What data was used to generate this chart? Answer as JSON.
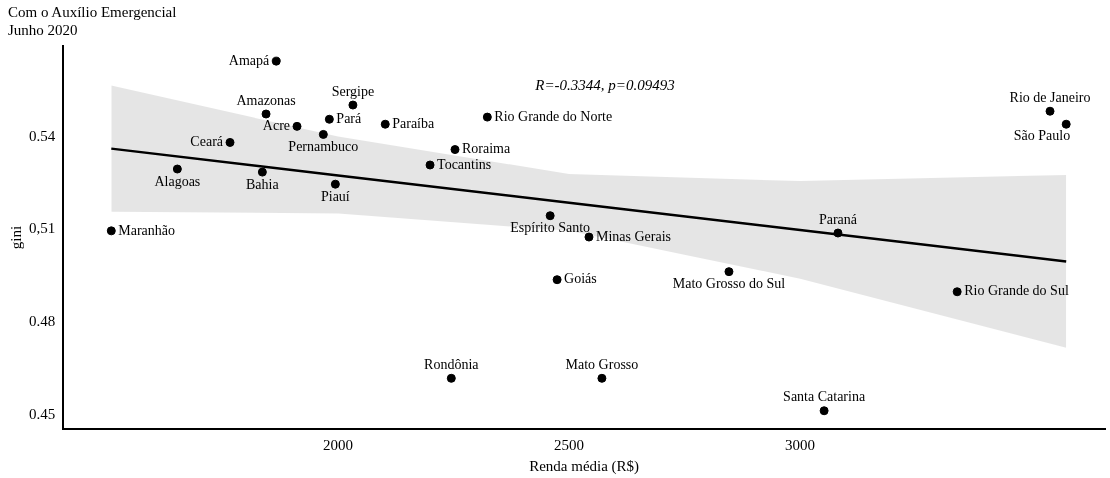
{
  "chart_data": {
    "type": "scatter",
    "title": "Com o Auxílio Emergencial",
    "subtitle": "Junho 2020",
    "xlabel": "Renda média (R$)",
    "ylabel": "gini",
    "annotations": [
      "R=-0.3344, p=0.09493"
    ],
    "xlim": [
      1405,
      3660
    ],
    "xticks": [
      2000,
      2500,
      3000
    ],
    "ylim": [
      0.4454,
      0.5693
    ],
    "yticks": [
      0.45,
      0.48,
      {
        "value": 0.51,
        "label": "0,51"
      },
      0.54
    ],
    "grid": false,
    "legend": false,
    "series": [
      {
        "marker": "circle",
        "color": "#000000",
        "x": [
          1866,
          1844,
          2032,
          1981,
          1911,
          2102,
          2323,
          1968,
          1766,
          2253,
          2199,
          1652,
          1836,
          1994,
          2459,
          1509,
          2543,
          3082,
          2846,
          2474,
          3340,
          3541,
          3576,
          2245,
          2571,
          3052
        ],
        "values": [
          0.5644,
          0.5473,
          0.5502,
          0.5456,
          0.5433,
          0.544,
          0.5463,
          0.5407,
          0.5381,
          0.5358,
          0.5308,
          0.5295,
          0.5285,
          0.5246,
          0.5144,
          0.5095,
          0.5075,
          0.5088,
          0.4963,
          0.4937,
          0.4898,
          0.5482,
          0.544,
          0.4618,
          0.4618,
          0.4513
        ],
        "value_labels": [
          "Amapá",
          "Amazonas",
          "Sergipe",
          "Pará",
          "Acre",
          "Paraíba",
          "Rio Grande do Norte",
          "Pernambuco",
          "Ceará",
          "Roraima",
          "Tocantins",
          "Alagoas",
          "Bahia",
          "Piauí",
          "Espírito Santo",
          "Maranhão",
          "Minas Gerais",
          "Paraná",
          "Mato Grosso do Sul",
          "Goiás",
          "Rio Grande do Sul",
          "Rio de Janeiro",
          "São Paulo",
          "Rondônia",
          "Mato Grosso",
          "Santa Catarina"
        ]
      },
      {
        "type": "line",
        "color": "#000000",
        "x": [
          1509,
          2000,
          2500,
          3000,
          3576
        ],
        "values": [
          0.5361,
          0.5274,
          0.5186,
          0.5098,
          0.4996
        ],
        "lower": [
          0.5157,
          0.5151,
          0.5095,
          0.494,
          0.4717
        ],
        "upper": [
          0.5565,
          0.54,
          0.5279,
          0.5256,
          0.5276
        ]
      }
    ]
  }
}
